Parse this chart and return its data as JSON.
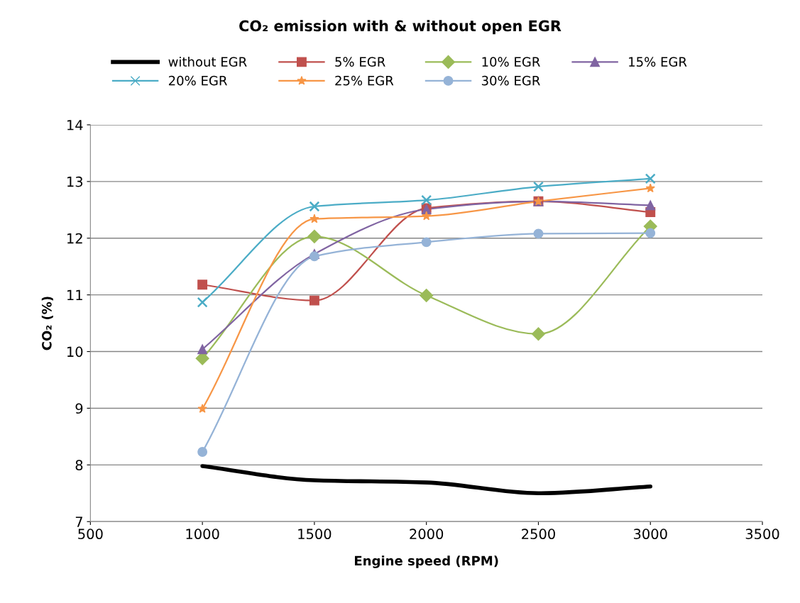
{
  "chart_data": {
    "type": "line",
    "title": "CO₂ emission with & without open EGR",
    "xlabel": "Engine speed (RPM)",
    "ylabel": "CO₂ (%)",
    "x": [
      1000,
      1500,
      2000,
      2500,
      3000
    ],
    "xlim": [
      500,
      3500
    ],
    "xticks": [
      500,
      1000,
      1500,
      2000,
      2500,
      3000,
      3500
    ],
    "ylim": [
      7,
      14
    ],
    "yticks": [
      7,
      8,
      9,
      10,
      11,
      12,
      13,
      14
    ],
    "grid": "y",
    "legend": "top",
    "series": [
      {
        "name": "without EGR",
        "color": "#000000",
        "marker": "none",
        "values": [
          7.98,
          7.73,
          7.69,
          7.5,
          7.62
        ]
      },
      {
        "name": "5% EGR",
        "color": "#c0504d",
        "marker": "square",
        "values": [
          11.18,
          10.9,
          12.53,
          12.65,
          12.46
        ]
      },
      {
        "name": "10% EGR",
        "color": "#9bbb59",
        "marker": "diamond",
        "values": [
          9.88,
          12.03,
          10.99,
          10.31,
          12.21
        ]
      },
      {
        "name": "15% EGR",
        "color": "#8064a2",
        "marker": "triangle",
        "values": [
          10.04,
          11.72,
          12.51,
          12.65,
          12.58
        ]
      },
      {
        "name": "20% EGR",
        "color": "#4bacc6",
        "marker": "cross",
        "values": [
          10.87,
          12.56,
          12.67,
          12.91,
          13.05
        ]
      },
      {
        "name": "25% EGR",
        "color": "#f79646",
        "marker": "star",
        "values": [
          8.99,
          12.34,
          12.39,
          12.65,
          12.88
        ]
      },
      {
        "name": "30% EGR",
        "color": "#95b3d7",
        "marker": "circle",
        "values": [
          8.23,
          11.68,
          11.93,
          12.08,
          12.09
        ]
      }
    ]
  }
}
